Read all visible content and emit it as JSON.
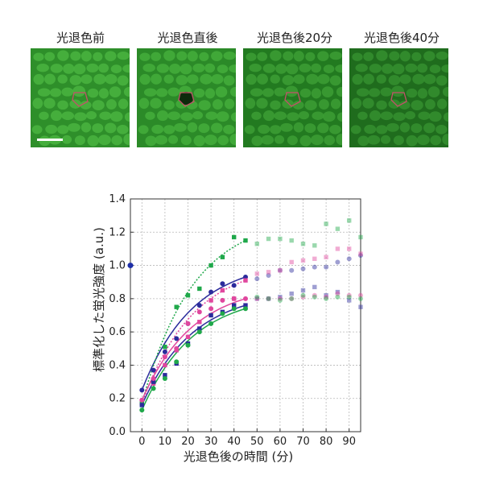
{
  "panels": [
    {
      "label": "光退色前"
    },
    {
      "label": "光退色直後"
    },
    {
      "label": "光退色後20分"
    },
    {
      "label": "光退色後40分"
    }
  ],
  "chart_data": {
    "type": "scatter",
    "xlabel": "光退色後の時間 (分)",
    "ylabel": "標準化した蛍光強度 (a.u.)",
    "xlim": [
      -5,
      95
    ],
    "ylim": [
      0,
      1.4
    ],
    "xticks": [
      0,
      10,
      20,
      30,
      40,
      50,
      60,
      70,
      80,
      90
    ],
    "yticks": [
      0,
      0.2,
      0.4,
      0.6,
      0.8,
      1.0,
      1.2,
      1.4
    ],
    "grid": true,
    "reference_point": {
      "x": -5,
      "y": 1.0
    },
    "series": [
      {
        "color": "#2b2b9c",
        "marker": "circle",
        "x": [
          0,
          5,
          10,
          15,
          20,
          25,
          30,
          35,
          40,
          45,
          50,
          55,
          60,
          65,
          70,
          75,
          80,
          85,
          90,
          95
        ],
        "y": [
          0.25,
          0.37,
          0.48,
          0.56,
          0.65,
          0.76,
          0.84,
          0.89,
          0.88,
          0.93,
          0.92,
          0.94,
          0.97,
          0.97,
          0.98,
          0.99,
          0.99,
          1.02,
          1.04,
          1.06
        ],
        "fit": "solid"
      },
      {
        "color": "#e0479e",
        "marker": "square",
        "x": [
          0,
          5,
          10,
          15,
          20,
          25,
          30,
          35,
          40,
          45,
          50,
          55,
          60,
          65,
          70,
          75,
          80,
          85,
          90,
          95
        ],
        "y": [
          0.17,
          0.29,
          0.4,
          0.49,
          0.57,
          0.66,
          0.79,
          0.85,
          0.8,
          0.91,
          0.95,
          0.96,
          0.97,
          1.02,
          1.03,
          1.04,
          1.05,
          1.1,
          1.1,
          1.07
        ],
        "fit": "dotted"
      },
      {
        "color": "#1fa84a",
        "marker": "square",
        "x": [
          0,
          5,
          10,
          15,
          20,
          25,
          30,
          35,
          40,
          45,
          50,
          55,
          60,
          65,
          70,
          75,
          80,
          85,
          90,
          95
        ],
        "y": [
          0.17,
          0.3,
          0.51,
          0.75,
          0.82,
          0.86,
          1.0,
          1.05,
          1.17,
          1.15,
          1.13,
          1.16,
          1.16,
          1.15,
          1.13,
          1.12,
          1.25,
          1.22,
          1.27,
          1.17
        ],
        "fit": "dotted"
      },
      {
        "color": "#2b2b9c",
        "marker": "square",
        "x": [
          0,
          5,
          10,
          15,
          20,
          25,
          30,
          35,
          40,
          45,
          50,
          55,
          60,
          65,
          70,
          75,
          80,
          85,
          90,
          95
        ],
        "y": [
          0.16,
          0.3,
          0.34,
          0.41,
          0.53,
          0.62,
          0.7,
          0.72,
          0.76,
          0.76,
          0.8,
          0.8,
          0.81,
          0.83,
          0.85,
          0.87,
          0.82,
          0.84,
          0.79,
          0.75
        ],
        "fit": "solid"
      },
      {
        "color": "#e0479e",
        "marker": "circle",
        "x": [
          0,
          5,
          10,
          15,
          20,
          25,
          30,
          35,
          40,
          45,
          50,
          55,
          60,
          65,
          70,
          75,
          80,
          85,
          90,
          95
        ],
        "y": [
          0.19,
          0.32,
          0.45,
          0.5,
          0.65,
          0.72,
          0.74,
          0.79,
          0.8,
          0.8,
          0.8,
          0.8,
          0.8,
          0.8,
          0.81,
          0.82,
          0.81,
          0.83,
          0.82,
          0.82
        ],
        "fit": "solid"
      },
      {
        "color": "#1fa84a",
        "marker": "circle",
        "x": [
          0,
          5,
          10,
          15,
          20,
          25,
          30,
          35,
          40,
          45,
          50,
          55,
          60,
          65,
          70,
          75,
          80,
          85,
          90,
          95
        ],
        "y": [
          0.13,
          0.26,
          0.32,
          0.42,
          0.52,
          0.6,
          0.65,
          0.71,
          0.74,
          0.74,
          0.81,
          0.8,
          0.79,
          0.8,
          0.82,
          0.81,
          0.8,
          0.81,
          0.81,
          0.8
        ],
        "fit": "solid"
      }
    ]
  }
}
